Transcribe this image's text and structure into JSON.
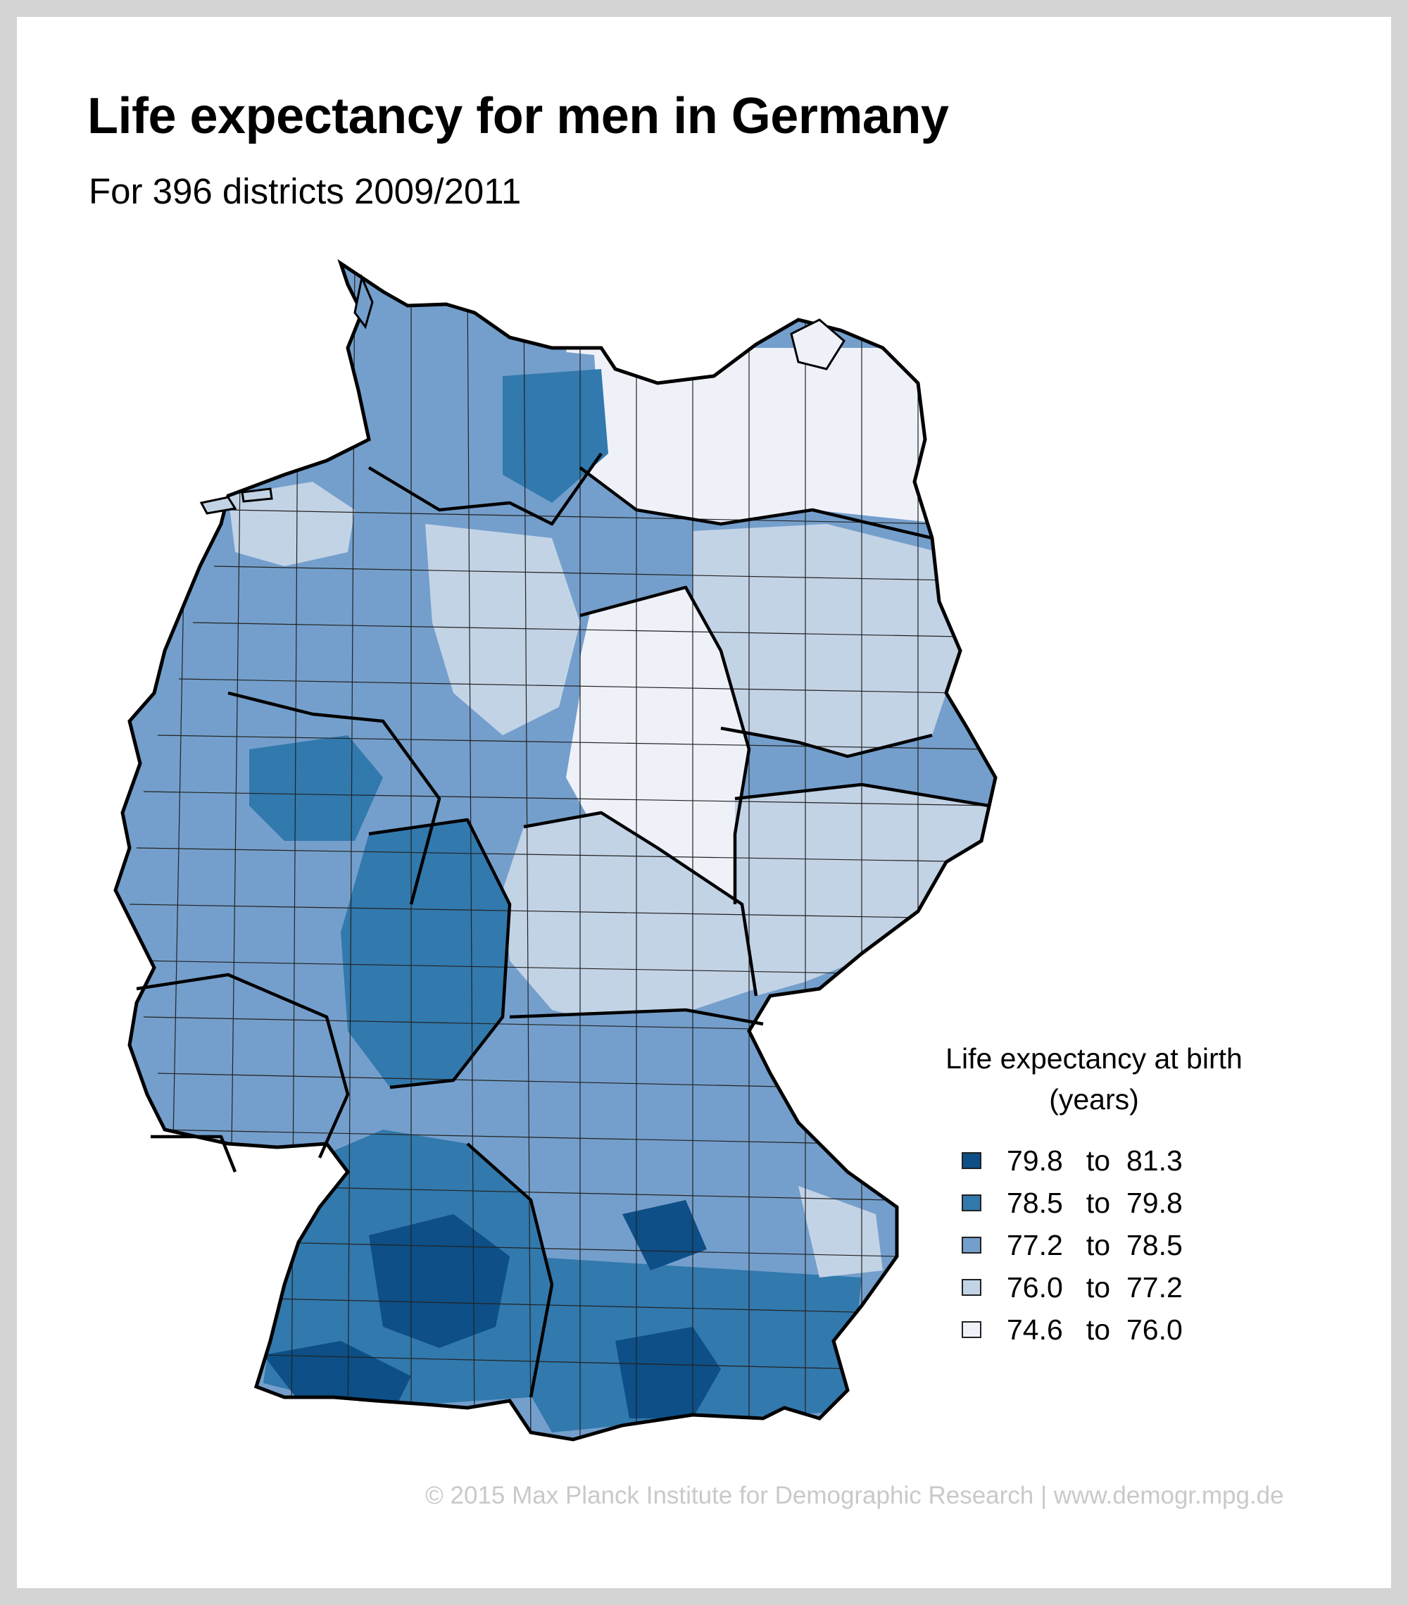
{
  "title": "Life expectancy for men in Germany",
  "subtitle": "For 396 districts 2009/2011",
  "legend": {
    "title_line1": "Life expectancy at birth",
    "title_line2": "(years)",
    "classes": [
      {
        "from": "79.8",
        "to": "81.3",
        "color": "#0d4f86"
      },
      {
        "from": "78.5",
        "to": "79.8",
        "color": "#3279ad"
      },
      {
        "from": "77.2",
        "to": "78.5",
        "color": "#749fcc"
      },
      {
        "from": "76.0",
        "to": "77.2",
        "color": "#c3d3e6"
      },
      {
        "from": "74.6",
        "to": "76.0",
        "color": "#eff1f9"
      }
    ],
    "to_word": "to"
  },
  "credit": "© 2015 Max Planck Institute for Demographic Research | www.demogr.mpg.de",
  "colors": {
    "background": "#d4d4d4",
    "card": "#ffffff",
    "state_border": "#000000",
    "district_border": "#222222"
  }
}
